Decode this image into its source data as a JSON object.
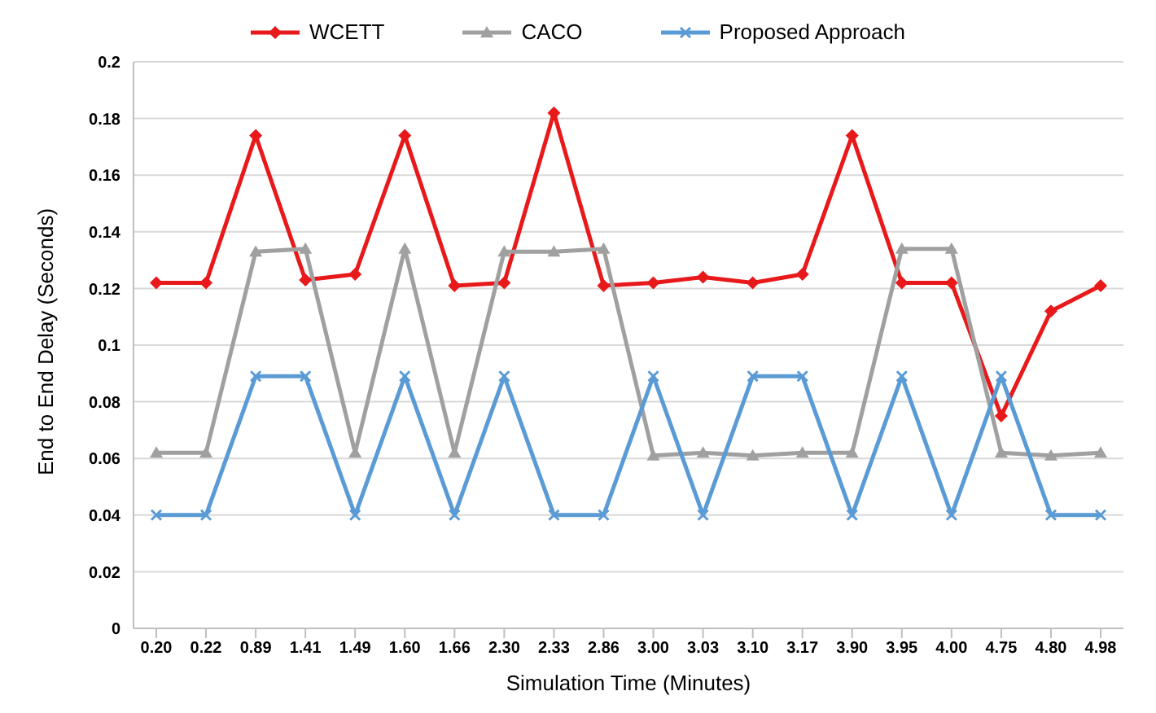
{
  "chart_data": {
    "type": "line",
    "xlabel": "Simulation Time (Minutes)",
    "ylabel": "End to End Delay (Seconds)",
    "categories": [
      "0.20",
      "0.22",
      "0.89",
      "1.41",
      "1.49",
      "1.60",
      "1.66",
      "2.30",
      "2.33",
      "2.86",
      "3.00",
      "3.03",
      "3.10",
      "3.17",
      "3.90",
      "3.95",
      "4.00",
      "4.75",
      "4.80",
      "4.98"
    ],
    "series": [
      {
        "name": "WCETT",
        "color": "#e8191b",
        "marker": "diamond",
        "values": [
          0.122,
          0.122,
          0.174,
          0.123,
          0.125,
          0.174,
          0.121,
          0.122,
          0.182,
          0.121,
          0.122,
          0.124,
          0.122,
          0.125,
          0.174,
          0.122,
          0.122,
          0.075,
          0.112,
          0.121
        ]
      },
      {
        "name": "CACO",
        "color": "#a0a0a0",
        "marker": "triangle",
        "values": [
          0.062,
          0.062,
          0.133,
          0.134,
          0.062,
          0.134,
          0.062,
          0.133,
          0.133,
          0.134,
          0.061,
          0.062,
          0.061,
          0.062,
          0.062,
          0.134,
          0.134,
          0.062,
          0.061,
          0.062
        ]
      },
      {
        "name": "Proposed Approach",
        "color": "#5b9bd5",
        "marker": "cross",
        "values": [
          0.04,
          0.04,
          0.089,
          0.089,
          0.04,
          0.089,
          0.04,
          0.089,
          0.04,
          0.04,
          0.089,
          0.04,
          0.089,
          0.089,
          0.04,
          0.089,
          0.04,
          0.089,
          0.04,
          0.04
        ]
      }
    ],
    "ylim": [
      0,
      0.2
    ],
    "yticks": [
      0,
      0.02,
      0.04,
      0.06,
      0.08,
      0.1,
      0.12,
      0.14,
      0.16,
      0.18,
      0.2
    ],
    "grid": "y",
    "legend": "top"
  }
}
